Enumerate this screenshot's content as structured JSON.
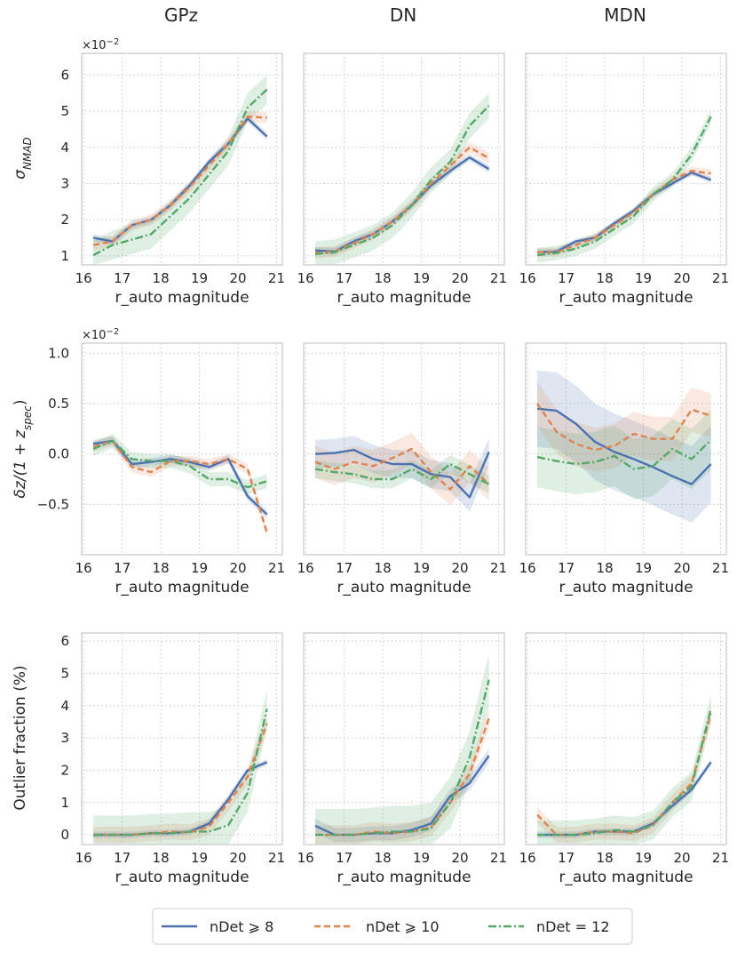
{
  "figure": {
    "column_titles": [
      "GPz",
      "DN",
      "MDN"
    ],
    "xlabel": "r_auto magnitude",
    "xticks": [
      "16",
      "17",
      "18",
      "19",
      "20",
      "21"
    ],
    "legend": [
      "nDet ⩾ 8",
      "nDet ⩾ 10",
      "nDet = 12"
    ],
    "colors": {
      "s1": "#4c72b0",
      "s2": "#dd8452",
      "s3": "#55a868",
      "frame": "#cccccc",
      "grid": "#c8c8c8"
    },
    "ylabels": {
      "row1": {
        "base": "σ",
        "sub": "NMAD"
      },
      "row2": {
        "pre": "δz/(1 + z",
        "sub": "spec",
        "post": ")"
      },
      "row3": "Outlier fraction (%)"
    },
    "multiplier": {
      "base": "×10",
      "exp": "−2"
    }
  },
  "chart_data": [
    {
      "type": "line",
      "row": 1,
      "title": "σ_NMAD",
      "xlim": [
        15.95,
        21.15
      ],
      "ylim": [
        0.75,
        6.6
      ],
      "yticks": [
        1,
        2,
        3,
        4,
        5,
        6
      ],
      "ytick_labels": [
        "1",
        "2",
        "3",
        "4",
        "5",
        "6"
      ],
      "grid": true,
      "panels": [
        {
          "column": "GPz",
          "x": [
            16.25,
            16.75,
            17.25,
            17.75,
            18.25,
            18.75,
            19.25,
            19.75,
            20.25,
            20.75
          ],
          "series": [
            {
              "name": "nDet ⩾ 8",
              "values": [
                1.5,
                1.4,
                1.85,
                2.0,
                2.4,
                2.95,
                3.6,
                4.1,
                4.8,
                4.3
              ],
              "band": 0.1
            },
            {
              "name": "nDet ⩾ 10",
              "values": [
                1.3,
                1.4,
                1.85,
                2.0,
                2.4,
                2.9,
                3.5,
                4.1,
                4.85,
                4.82
              ],
              "band": 0.15
            },
            {
              "name": "nDet = 12",
              "values": [
                1.02,
                1.3,
                1.45,
                1.6,
                2.1,
                2.6,
                3.25,
                3.9,
                5.1,
                5.6
              ],
              "band": 0.4
            }
          ]
        },
        {
          "column": "DN",
          "x": [
            16.25,
            16.75,
            17.25,
            17.75,
            18.25,
            18.75,
            19.25,
            19.75,
            20.25,
            20.75
          ],
          "series": [
            {
              "name": "nDet ⩾ 8",
              "values": [
                1.15,
                1.12,
                1.4,
                1.6,
                1.95,
                2.4,
                2.95,
                3.35,
                3.72,
                3.4
              ],
              "band": 0.1
            },
            {
              "name": "nDet ⩾ 10",
              "values": [
                1.08,
                1.12,
                1.35,
                1.6,
                1.95,
                2.4,
                3.0,
                3.5,
                4.0,
                3.7
              ],
              "band": 0.15
            },
            {
              "name": "nDet = 12",
              "values": [
                1.05,
                1.1,
                1.3,
                1.5,
                1.85,
                2.4,
                3.1,
                3.6,
                4.6,
                5.15
              ],
              "band": 0.35
            }
          ]
        },
        {
          "column": "MDN",
          "x": [
            16.25,
            16.75,
            17.25,
            17.75,
            18.25,
            18.75,
            19.25,
            19.75,
            20.25,
            20.75
          ],
          "series": [
            {
              "name": "nDet ⩾ 8",
              "values": [
                1.1,
                1.12,
                1.4,
                1.5,
                1.9,
                2.25,
                2.7,
                3.0,
                3.3,
                3.1
              ],
              "band": 0.08
            },
            {
              "name": "nDet ⩾ 10",
              "values": [
                1.1,
                1.1,
                1.3,
                1.5,
                1.85,
                2.2,
                2.7,
                3.1,
                3.35,
                3.28
              ],
              "band": 0.12
            },
            {
              "name": "nDet = 12",
              "values": [
                1.02,
                1.08,
                1.2,
                1.4,
                1.75,
                2.1,
                2.7,
                3.1,
                3.8,
                4.85
              ],
              "band": 0.2
            }
          ]
        }
      ]
    },
    {
      "type": "line",
      "row": 2,
      "title": "δz/(1 + z_spec)",
      "xlim": [
        15.95,
        21.15
      ],
      "ylim": [
        -1.0,
        1.1
      ],
      "yticks": [
        -0.5,
        0.0,
        0.5,
        1.0
      ],
      "ytick_labels": [
        "−0.5",
        "0.0",
        "0.5",
        "1.0"
      ],
      "grid": true,
      "panels": [
        {
          "column": "GPz",
          "x": [
            16.25,
            16.75,
            17.25,
            17.75,
            18.25,
            18.75,
            19.25,
            19.75,
            20.25,
            20.75
          ],
          "series": [
            {
              "name": "nDet ⩾ 8",
              "values": [
                0.1,
                0.13,
                -0.1,
                -0.08,
                -0.05,
                -0.08,
                -0.13,
                -0.05,
                -0.42,
                -0.6
              ],
              "band": 0.04
            },
            {
              "name": "nDet ⩾ 10",
              "values": [
                0.07,
                0.13,
                -0.13,
                -0.18,
                -0.07,
                -0.07,
                -0.1,
                -0.05,
                -0.15,
                -0.78
              ],
              "band": 0.05
            },
            {
              "name": "nDet = 12",
              "values": [
                0.05,
                0.13,
                -0.05,
                -0.07,
                -0.07,
                -0.12,
                -0.25,
                -0.25,
                -0.33,
                -0.27
              ],
              "band": 0.07
            }
          ]
        },
        {
          "column": "DN",
          "x": [
            16.25,
            16.75,
            17.25,
            17.75,
            18.25,
            18.75,
            19.25,
            19.75,
            20.25,
            20.75
          ],
          "series": [
            {
              "name": "nDet ⩾ 8",
              "values": [
                0.0,
                0.01,
                0.04,
                -0.05,
                -0.1,
                -0.1,
                -0.2,
                -0.23,
                -0.43,
                0.02
              ],
              "band": 0.14
            },
            {
              "name": "nDet ⩾ 10",
              "values": [
                -0.08,
                -0.15,
                -0.08,
                -0.12,
                -0.04,
                0.05,
                -0.18,
                -0.35,
                -0.12,
                -0.3
              ],
              "band": 0.16
            },
            {
              "name": "nDet = 12",
              "values": [
                -0.15,
                -0.18,
                -0.2,
                -0.25,
                -0.25,
                -0.15,
                -0.25,
                -0.1,
                -0.2,
                -0.3
              ],
              "band": 0.09
            }
          ]
        },
        {
          "column": "MDN",
          "x": [
            16.25,
            16.75,
            17.25,
            17.75,
            18.25,
            18.75,
            19.25,
            19.75,
            20.25,
            20.75
          ],
          "series": [
            {
              "name": "nDet ⩾ 8",
              "values": [
                0.45,
                0.43,
                0.3,
                0.12,
                0.02,
                -0.05,
                -0.13,
                -0.22,
                -0.3,
                -0.1
              ],
              "band": 0.38
            },
            {
              "name": "nDet ⩾ 10",
              "values": [
                0.5,
                0.22,
                0.1,
                0.04,
                0.08,
                0.2,
                0.15,
                0.15,
                0.44,
                0.38
              ],
              "band": 0.22
            },
            {
              "name": "nDet = 12",
              "values": [
                -0.03,
                -0.07,
                -0.1,
                -0.08,
                -0.02,
                -0.15,
                -0.12,
                0.05,
                -0.05,
                0.14
              ],
              "band": 0.3
            }
          ]
        }
      ]
    },
    {
      "type": "line",
      "row": 3,
      "title": "Outlier fraction (%)",
      "xlim": [
        15.95,
        21.15
      ],
      "ylim": [
        -0.3,
        6.25
      ],
      "yticks": [
        0,
        1,
        2,
        3,
        4,
        5,
        6
      ],
      "ytick_labels": [
        "0",
        "1",
        "2",
        "3",
        "4",
        "5",
        "6"
      ],
      "grid": true,
      "panels": [
        {
          "column": "GPz",
          "x": [
            16.25,
            16.75,
            17.25,
            17.75,
            18.25,
            18.75,
            19.25,
            19.75,
            20.25,
            20.75
          ],
          "series": [
            {
              "name": "nDet ⩾ 8",
              "values": [
                0.0,
                0.0,
                0.0,
                0.05,
                0.05,
                0.1,
                0.35,
                1.1,
                2.0,
                2.25
              ],
              "band": 0.1
            },
            {
              "name": "nDet ⩾ 10",
              "values": [
                0.0,
                0.0,
                0.0,
                0.05,
                0.1,
                0.08,
                0.25,
                1.0,
                1.8,
                3.45
              ],
              "band": 0.25
            },
            {
              "name": "nDet = 12",
              "values": [
                0.0,
                0.0,
                0.0,
                0.05,
                0.05,
                0.1,
                0.1,
                0.3,
                1.3,
                3.9
              ],
              "band": 0.6
            }
          ]
        },
        {
          "column": "DN",
          "x": [
            16.25,
            16.75,
            17.25,
            17.75,
            18.25,
            18.75,
            19.25,
            19.75,
            20.25,
            20.75
          ],
          "series": [
            {
              "name": "nDet ⩾ 8",
              "values": [
                0.28,
                0.0,
                0.0,
                0.05,
                0.05,
                0.15,
                0.35,
                1.2,
                1.6,
                2.45
              ],
              "band": 0.22
            },
            {
              "name": "nDet ⩾ 10",
              "values": [
                0.0,
                0.0,
                0.0,
                0.1,
                0.05,
                0.1,
                0.25,
                1.0,
                1.9,
                3.6
              ],
              "band": 0.3
            },
            {
              "name": "nDet = 12",
              "values": [
                0.0,
                0.0,
                0.0,
                0.05,
                0.1,
                0.1,
                0.2,
                1.0,
                2.4,
                4.8
              ],
              "band": 0.8
            }
          ]
        },
        {
          "column": "MDN",
          "x": [
            16.25,
            16.75,
            17.25,
            17.75,
            18.25,
            18.75,
            19.25,
            19.75,
            20.25,
            20.75
          ],
          "series": [
            {
              "name": "nDet ⩾ 8",
              "values": [
                0.0,
                0.0,
                0.0,
                0.1,
                0.1,
                0.1,
                0.35,
                0.9,
                1.4,
                2.25
              ],
              "band": 0.1
            },
            {
              "name": "nDet ⩾ 10",
              "values": [
                0.62,
                0.0,
                0.0,
                0.1,
                0.1,
                0.05,
                0.3,
                1.0,
                1.6,
                3.75
              ],
              "band": 0.25
            },
            {
              "name": "nDet = 12",
              "values": [
                0.0,
                0.0,
                0.0,
                0.05,
                0.15,
                0.1,
                0.3,
                1.0,
                1.5,
                3.9
              ],
              "band": 0.45
            }
          ]
        }
      ]
    }
  ]
}
